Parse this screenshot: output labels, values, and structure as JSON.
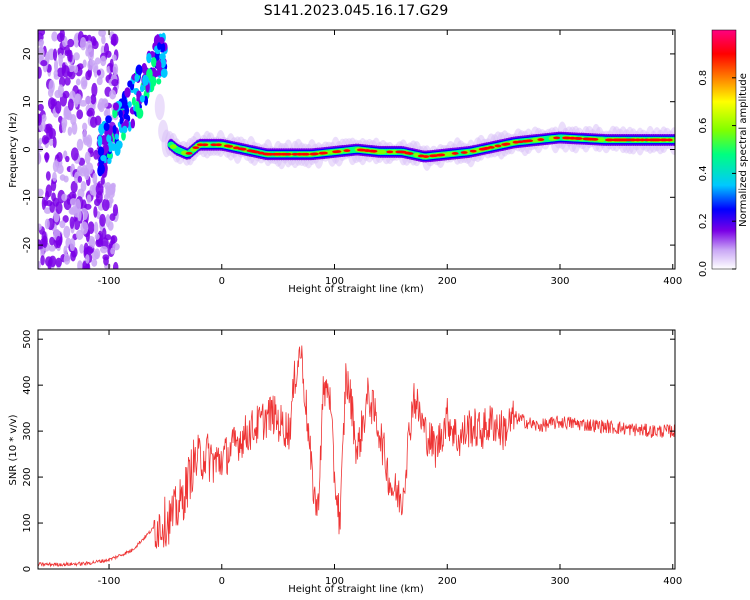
{
  "title": "S141.2023.045.16.17.G29",
  "chart_data": [
    {
      "type": "heatmap",
      "xlabel": "Height of straight line (km)",
      "ylabel": "Frequency (Hz)",
      "xlim": [
        -163,
        402
      ],
      "ylim": [
        -25,
        25
      ],
      "xticks": [
        -100,
        0,
        100,
        200,
        300,
        400
      ],
      "yticks": [
        -20,
        -10,
        0,
        10,
        20
      ],
      "ridge": {
        "x": [
          -100,
          -90,
          -80,
          -70,
          -60,
          -50,
          -45,
          -40,
          -30,
          -20,
          0,
          20,
          40,
          60,
          80,
          100,
          120,
          140,
          160,
          180,
          200,
          220,
          240,
          260,
          280,
          300,
          340,
          380,
          402
        ],
        "y": [
          -1,
          5,
          10,
          14,
          17,
          1,
          1,
          0,
          -1,
          1,
          1,
          0,
          -1,
          -1,
          -1,
          -0.5,
          0,
          -0.5,
          -0.5,
          -1.5,
          -1,
          -0.5,
          0.5,
          1.5,
          2,
          2.5,
          2,
          2,
          2
        ]
      },
      "colorbar": {
        "label": "Normalized spectral amplitude",
        "range": [
          0,
          1
        ],
        "ticks": [
          0.0,
          0.2,
          0.4,
          0.6,
          0.8
        ],
        "colors": [
          "#ffffff",
          "#c9a6f5",
          "#7a00e6",
          "#0000ff",
          "#00c8ff",
          "#00ff80",
          "#80ff00",
          "#ffff00",
          "#ff8000",
          "#ff0000",
          "#ff0080"
        ]
      }
    },
    {
      "type": "line",
      "xlabel": "Height of straight line (km)",
      "ylabel": "SNR (10 * v/v)",
      "xlim": [
        -163,
        402
      ],
      "ylim": [
        0,
        520
      ],
      "xticks": [
        -100,
        0,
        100,
        200,
        300,
        400
      ],
      "yticks": [
        0,
        100,
        200,
        300,
        400,
        500
      ],
      "color": "#ee3333",
      "series": [
        {
          "x": [
            -163,
            -140,
            -120,
            -100,
            -80,
            -60,
            -45,
            -35,
            -25,
            -15,
            -5,
            5,
            15,
            25,
            35,
            45,
            50,
            60,
            65,
            70,
            75,
            80,
            85,
            90,
            95,
            100,
            105,
            110,
            115,
            120,
            130,
            140,
            150,
            160,
            170,
            180,
            190,
            200,
            210,
            220,
            230,
            240,
            250,
            260,
            270,
            280,
            300,
            320,
            340,
            360,
            380,
            402
          ],
          "y": [
            10,
            10,
            12,
            20,
            40,
            90,
            110,
            150,
            230,
            250,
            230,
            250,
            280,
            300,
            320,
            340,
            320,
            300,
            420,
            480,
            350,
            200,
            120,
            380,
            400,
            200,
            100,
            420,
            360,
            250,
            380,
            300,
            180,
            150,
            380,
            300,
            260,
            330,
            280,
            310,
            300,
            320,
            300,
            330,
            320,
            310,
            320,
            315,
            310,
            305,
            300,
            300
          ]
        }
      ]
    }
  ]
}
